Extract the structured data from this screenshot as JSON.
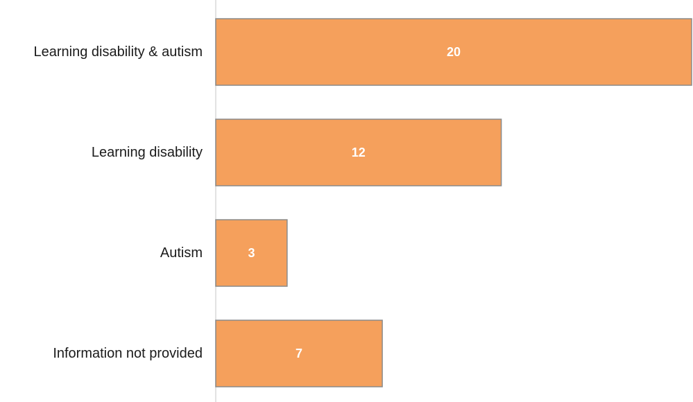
{
  "colors": {
    "bar_fill": "#F5A05C",
    "bar_stroke": "#8a8a8a",
    "axis_line": "#d9d9d9",
    "label_text": "#1a1a1a",
    "value_text": "#ffffff"
  },
  "chart_data": {
    "type": "bar",
    "orientation": "horizontal",
    "categories": [
      "Learning disability & autism",
      "Learning disability",
      "Autism",
      "Information not provided"
    ],
    "values": [
      20,
      12,
      3,
      7
    ],
    "data_labels": [
      "20",
      "12",
      "3",
      "7"
    ],
    "xlim": [
      0,
      20
    ],
    "title": "",
    "xlabel": "",
    "ylabel": "",
    "grid": false,
    "legend": "none"
  }
}
